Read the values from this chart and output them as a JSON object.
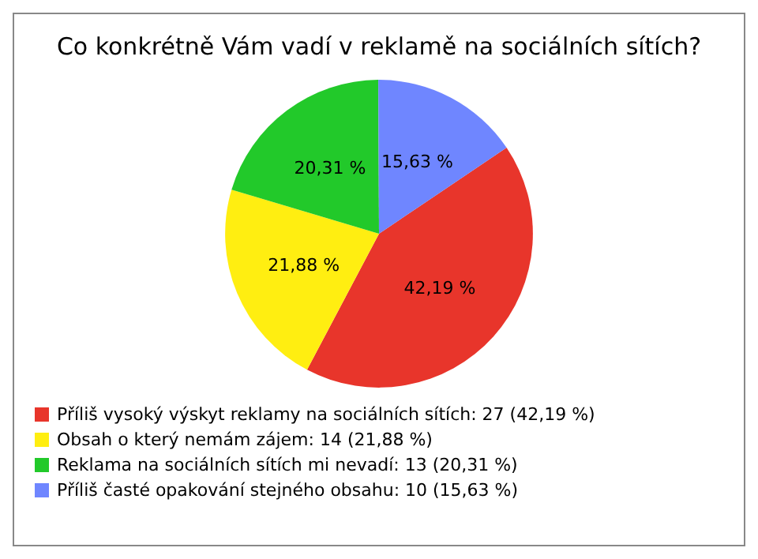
{
  "chart_data": {
    "type": "pie",
    "title": "Co konkrétně Vám vadí v reklamě na sociálních sítích?",
    "categories": [
      "Příliš vysoký výskyt reklamy na sociálních sítích: 27 (42,19 %)",
      "Obsah o který nemám zájem: 14 (21,88 %)",
      "Reklama na sociálních sítích mi nevadí: 13 (20,31 %)",
      "Příliš časté opakování stejného obsahu: 10 (15,63 %)"
    ],
    "values": [
      42.19,
      21.88,
      20.31,
      15.63
    ],
    "value_labels": [
      "42,19 %",
      "21,88 %",
      "20,31 %",
      "15,63 %"
    ],
    "colors": [
      "#e8352b",
      "#ffee11",
      "#22c92a",
      "#6f86ff"
    ],
    "legend": "bottom left"
  }
}
